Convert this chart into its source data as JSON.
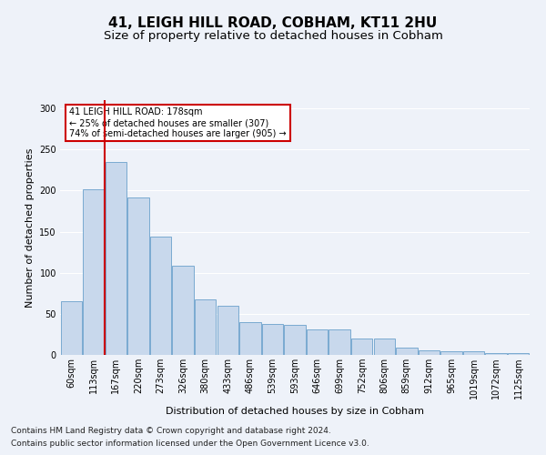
{
  "title1": "41, LEIGH HILL ROAD, COBHAM, KT11 2HU",
  "title2": "Size of property relative to detached houses in Cobham",
  "xlabel": "Distribution of detached houses by size in Cobham",
  "ylabel": "Number of detached properties",
  "footnote1": "Contains HM Land Registry data © Crown copyright and database right 2024.",
  "footnote2": "Contains public sector information licensed under the Open Government Licence v3.0.",
  "categories": [
    "60sqm",
    "113sqm",
    "167sqm",
    "220sqm",
    "273sqm",
    "326sqm",
    "380sqm",
    "433sqm",
    "486sqm",
    "539sqm",
    "593sqm",
    "646sqm",
    "699sqm",
    "752sqm",
    "806sqm",
    "859sqm",
    "912sqm",
    "965sqm",
    "1019sqm",
    "1072sqm",
    "1125sqm"
  ],
  "values": [
    65,
    202,
    235,
    191,
    144,
    108,
    68,
    60,
    40,
    38,
    37,
    31,
    31,
    20,
    20,
    9,
    5,
    4,
    4,
    2,
    2
  ],
  "bar_color": "#c8d8ec",
  "bar_edge_color": "#7aaad0",
  "annotation_title": "41 LEIGH HILL ROAD: 178sqm",
  "annotation_line1": "← 25% of detached houses are smaller (307)",
  "annotation_line2": "74% of semi-detached houses are larger (905) →",
  "annotation_box_color": "#ffffff",
  "annotation_box_edge": "#cc0000",
  "line_color": "#cc0000",
  "ylim": [
    0,
    310
  ],
  "yticks": [
    0,
    50,
    100,
    150,
    200,
    250,
    300
  ],
  "background_color": "#eef2f9",
  "grid_color": "#ffffff",
  "title1_fontsize": 11,
  "title2_fontsize": 9.5,
  "axis_fontsize": 8,
  "tick_fontsize": 7,
  "footnote_fontsize": 6.5
}
